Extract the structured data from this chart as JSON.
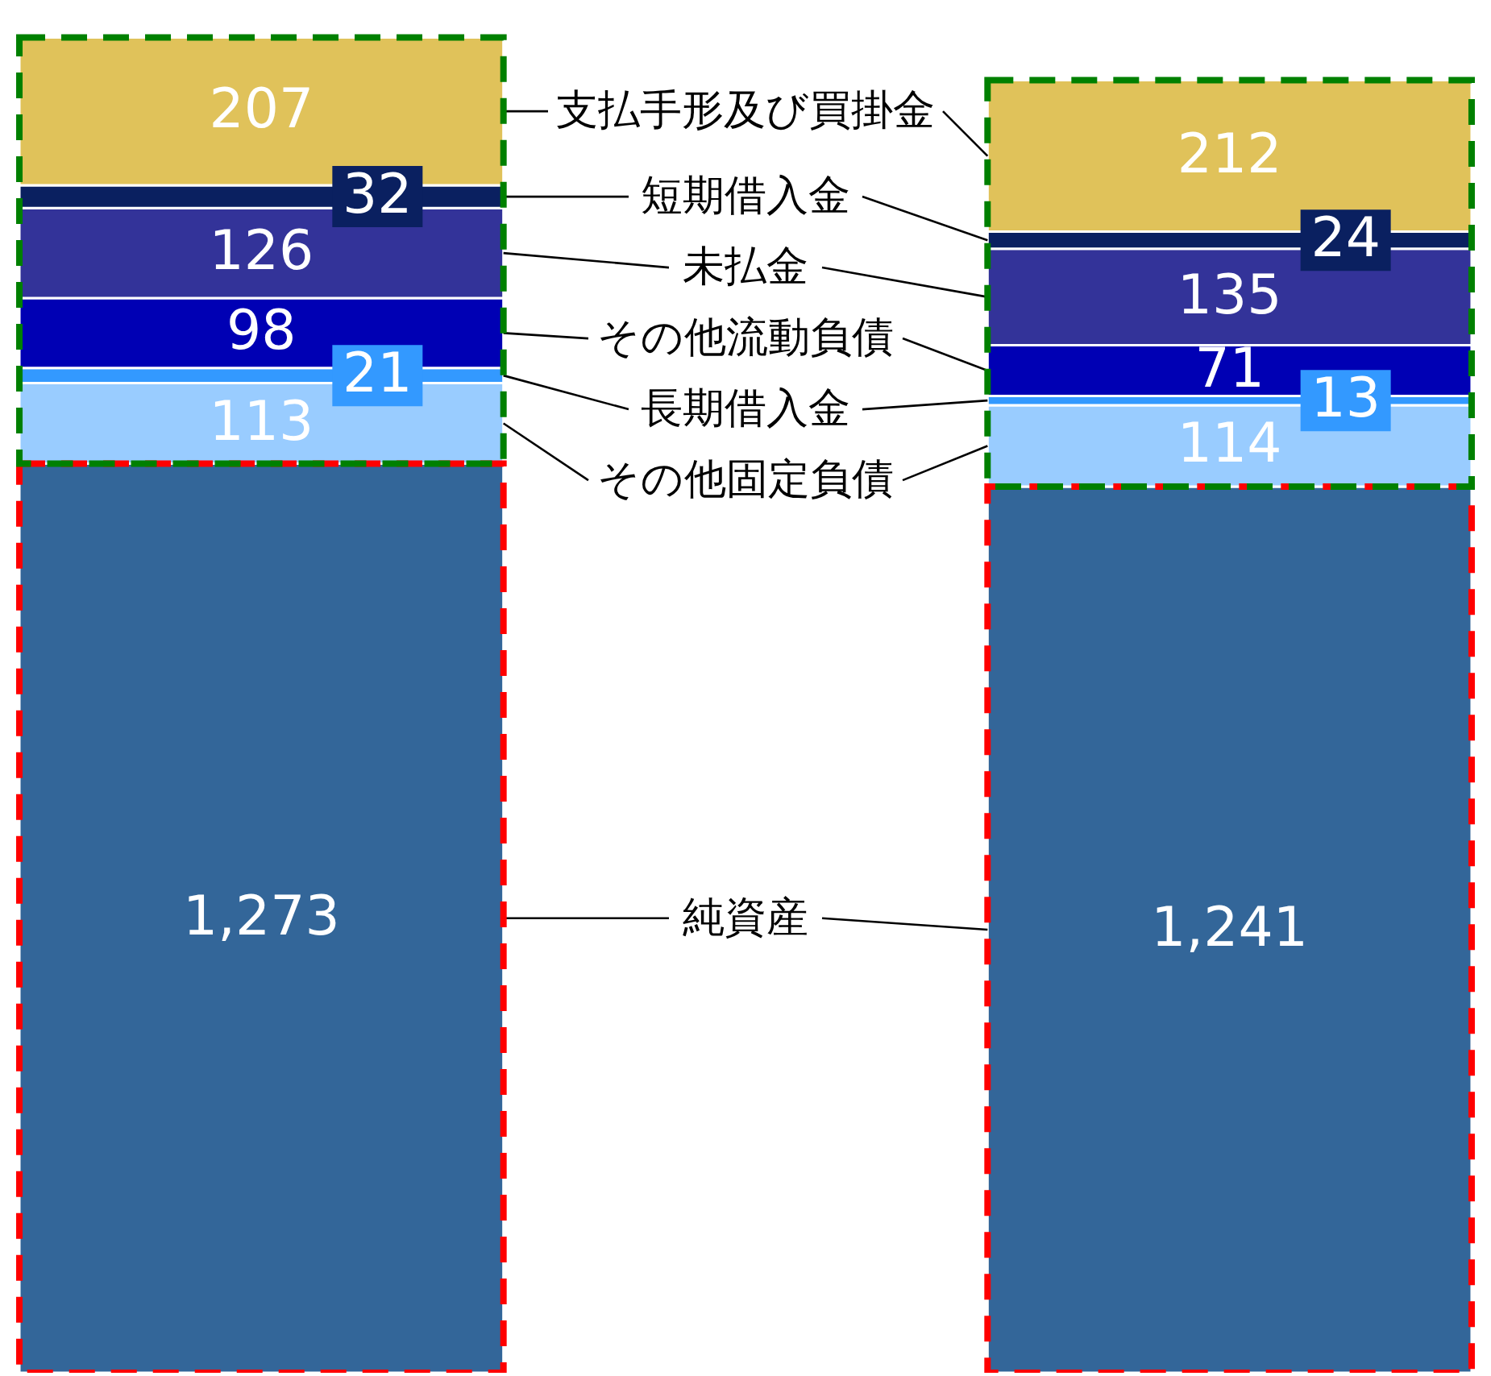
{
  "chart_data": {
    "type": "bar",
    "stacked": true,
    "categories": [
      null,
      null
    ],
    "series": [
      {
        "name": "純資産",
        "color": "#336699",
        "values": [
          1273,
          1241
        ],
        "value_labels": [
          "1,273",
          "1,241"
        ]
      },
      {
        "name": "その他固定負債",
        "color": "#99ccff",
        "values": [
          113,
          114
        ],
        "value_labels": [
          "113",
          "114"
        ]
      },
      {
        "name": "長期借入金",
        "color": "#3399ff",
        "values": [
          21,
          13
        ],
        "value_labels": [
          "21",
          "13"
        ]
      },
      {
        "name": "その他流動負債",
        "color": "#0000b4",
        "values": [
          98,
          71
        ],
        "value_labels": [
          "98",
          "71"
        ]
      },
      {
        "name": "未払金",
        "color": "#333399",
        "values": [
          126,
          135
        ],
        "value_labels": [
          "126",
          "135"
        ]
      },
      {
        "name": "短期借入金",
        "color": "#0a2060",
        "values": [
          32,
          24
        ],
        "value_labels": [
          "32",
          "24"
        ]
      },
      {
        "name": "支払手形及び買掛金",
        "color": "#e0c25a",
        "values": [
          207,
          212
        ],
        "value_labels": [
          "207",
          "212"
        ]
      }
    ]
  }
}
